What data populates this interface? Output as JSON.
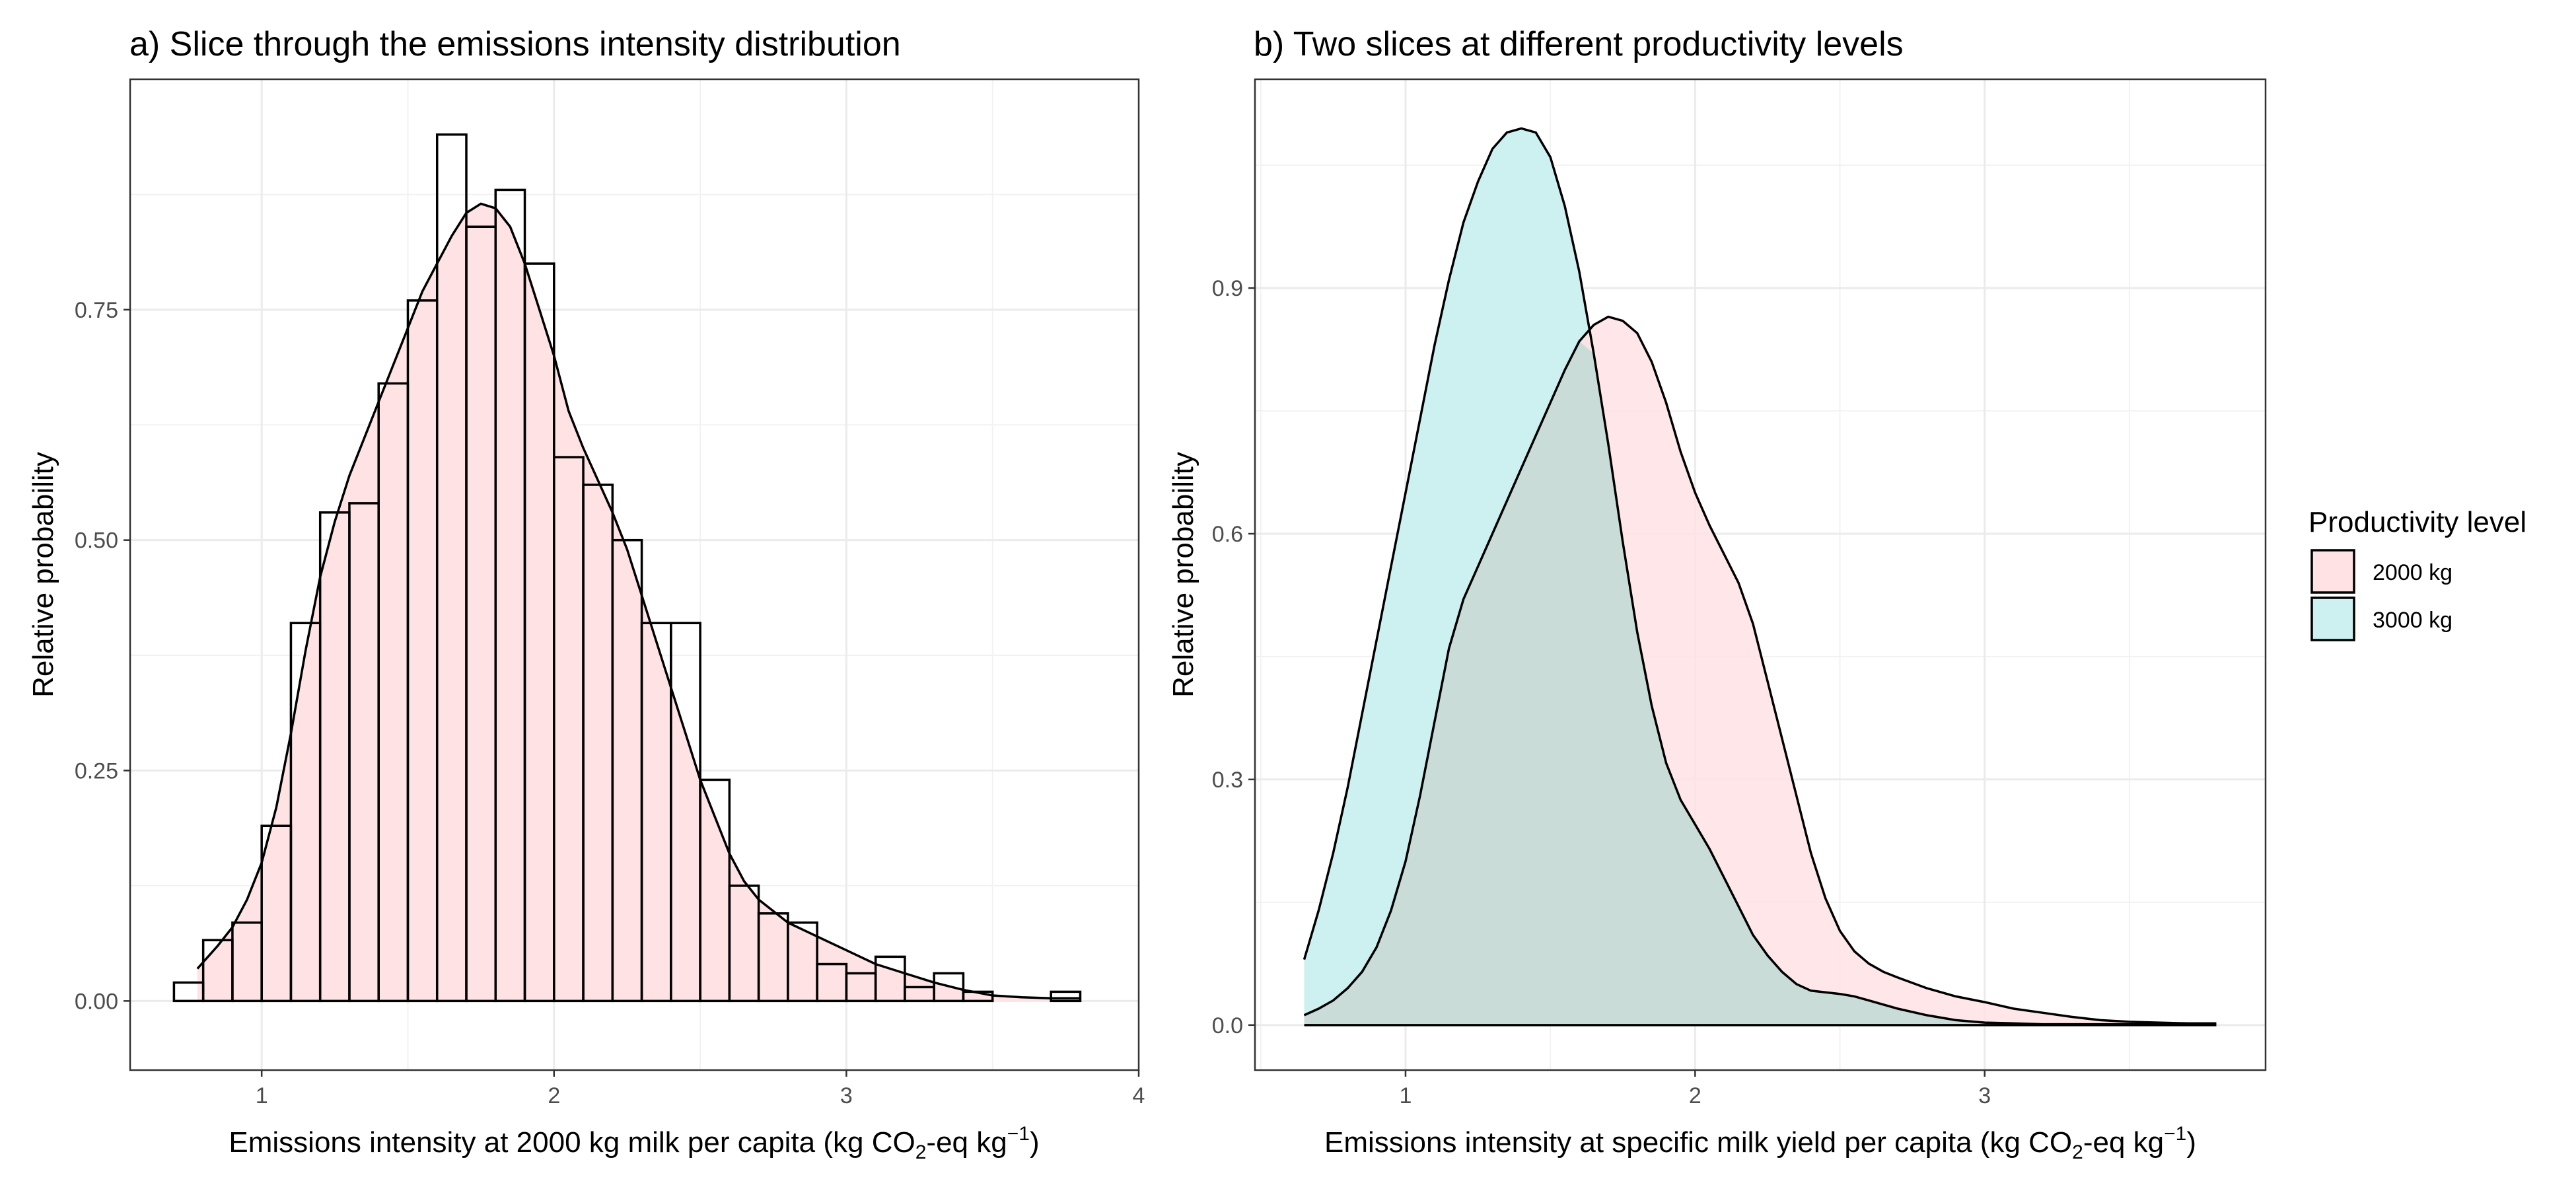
{
  "chart_data": [
    {
      "type": "bar",
      "title": "a) Slice through the emissions intensity distribution",
      "xlabel_main": "Emissions intensity at 2000 kg milk per capita",
      "xlabel_unit": {
        "open": "(kg CO",
        "sub": "2",
        "mid": "-eq kg",
        "sup": "−1",
        "close": ")"
      },
      "ylabel": "Relative probability",
      "xlim": [
        0.55,
        4.0
      ],
      "ylim": [
        -0.075,
        1.0
      ],
      "xticks": [
        1,
        2,
        3,
        4
      ],
      "xtick_labels": [
        "1",
        "2",
        "3",
        "4"
      ],
      "yticks": [
        0,
        0.25,
        0.5,
        0.75
      ],
      "ytick_labels": [
        "0.00",
        "0.25",
        "0.50",
        "0.75"
      ],
      "grid": true,
      "fill_color": "#ffe2e4",
      "bin_width": 0.1,
      "bins": [
        {
          "x0": 0.7,
          "x1": 0.8,
          "value": 0.02
        },
        {
          "x0": 0.8,
          "x1": 0.9,
          "value": 0.066
        },
        {
          "x0": 0.9,
          "x1": 1.0,
          "value": 0.085
        },
        {
          "x0": 1.0,
          "x1": 1.1,
          "value": 0.19
        },
        {
          "x0": 1.1,
          "x1": 1.2,
          "value": 0.41
        },
        {
          "x0": 1.2,
          "x1": 1.3,
          "value": 0.53
        },
        {
          "x0": 1.3,
          "x1": 1.4,
          "value": 0.54
        },
        {
          "x0": 1.4,
          "x1": 1.5,
          "value": 0.67
        },
        {
          "x0": 1.5,
          "x1": 1.6,
          "value": 0.76
        },
        {
          "x0": 1.6,
          "x1": 1.7,
          "value": 0.94
        },
        {
          "x0": 1.7,
          "x1": 1.8,
          "value": 0.84
        },
        {
          "x0": 1.8,
          "x1": 1.9,
          "value": 0.88
        },
        {
          "x0": 1.9,
          "x1": 2.0,
          "value": 0.8
        },
        {
          "x0": 2.0,
          "x1": 2.1,
          "value": 0.59
        },
        {
          "x0": 2.1,
          "x1": 2.2,
          "value": 0.56
        },
        {
          "x0": 2.2,
          "x1": 2.3,
          "value": 0.5
        },
        {
          "x0": 2.3,
          "x1": 2.4,
          "value": 0.41
        },
        {
          "x0": 2.4,
          "x1": 2.5,
          "value": 0.41
        },
        {
          "x0": 2.5,
          "x1": 2.6,
          "value": 0.24
        },
        {
          "x0": 2.6,
          "x1": 2.7,
          "value": 0.125
        },
        {
          "x0": 2.7,
          "x1": 2.8,
          "value": 0.095
        },
        {
          "x0": 2.8,
          "x1": 2.9,
          "value": 0.085
        },
        {
          "x0": 2.9,
          "x1": 3.0,
          "value": 0.04
        },
        {
          "x0": 3.0,
          "x1": 3.1,
          "value": 0.03
        },
        {
          "x0": 3.1,
          "x1": 3.2,
          "value": 0.048
        },
        {
          "x0": 3.2,
          "x1": 3.3,
          "value": 0.015
        },
        {
          "x0": 3.3,
          "x1": 3.4,
          "value": 0.03
        },
        {
          "x0": 3.4,
          "x1": 3.5,
          "value": 0.01
        },
        {
          "x0": 3.7,
          "x1": 3.8,
          "value": 0.01
        }
      ],
      "density": {
        "x": [
          0.78,
          0.85,
          0.9,
          0.95,
          1.0,
          1.05,
          1.1,
          1.15,
          1.2,
          1.25,
          1.3,
          1.35,
          1.4,
          1.45,
          1.5,
          1.55,
          1.6,
          1.65,
          1.7,
          1.75,
          1.8,
          1.85,
          1.9,
          1.95,
          2.0,
          2.05,
          2.1,
          2.15,
          2.2,
          2.25,
          2.3,
          2.35,
          2.4,
          2.45,
          2.5,
          2.55,
          2.6,
          2.65,
          2.7,
          2.8,
          2.9,
          3.0,
          3.1,
          3.2,
          3.3,
          3.4,
          3.5,
          3.6,
          3.7,
          3.8
        ],
        "y": [
          0.035,
          0.06,
          0.08,
          0.11,
          0.15,
          0.21,
          0.29,
          0.38,
          0.46,
          0.52,
          0.57,
          0.61,
          0.65,
          0.69,
          0.73,
          0.77,
          0.8,
          0.83,
          0.855,
          0.865,
          0.86,
          0.84,
          0.8,
          0.75,
          0.7,
          0.64,
          0.6,
          0.565,
          0.53,
          0.49,
          0.44,
          0.39,
          0.34,
          0.29,
          0.24,
          0.2,
          0.16,
          0.13,
          0.11,
          0.085,
          0.07,
          0.055,
          0.04,
          0.03,
          0.02,
          0.012,
          0.006,
          0.004,
          0.003,
          0.003
        ]
      }
    },
    {
      "type": "area",
      "title": "b) Two slices at different productivity levels",
      "xlabel_main": "Emissions intensity at specific milk yield per capita",
      "xlabel_unit": {
        "open": "(kg CO",
        "sub": "2",
        "mid": "-eq kg",
        "sup": "−1",
        "close": ")"
      },
      "ylabel": "Relative probability",
      "xlim": [
        0.48,
        3.97
      ],
      "ylim": [
        -0.055,
        1.155
      ],
      "xticks": [
        1,
        2,
        3
      ],
      "xtick_labels": [
        "1",
        "2",
        "3"
      ],
      "yticks": [
        0,
        0.3,
        0.6,
        0.9
      ],
      "ytick_labels": [
        "0.0",
        "0.3",
        "0.6",
        "0.9"
      ],
      "grid": true,
      "legend": {
        "title": "Productivity level",
        "placement": "right",
        "entries": [
          {
            "label": "2000 kg",
            "color": "#ffe2e4"
          },
          {
            "label": "3000 kg",
            "color": "#cdf0f0"
          }
        ]
      },
      "series": [
        {
          "name": "3000 kg",
          "color": "#cdf0f0",
          "x": [
            0.65,
            0.7,
            0.75,
            0.8,
            0.85,
            0.9,
            0.95,
            1.0,
            1.05,
            1.1,
            1.15,
            1.2,
            1.25,
            1.3,
            1.35,
            1.4,
            1.45,
            1.5,
            1.55,
            1.6,
            1.65,
            1.7,
            1.75,
            1.8,
            1.85,
            1.9,
            1.95,
            2.0,
            2.05,
            2.1,
            2.15,
            2.2,
            2.25,
            2.3,
            2.35,
            2.4,
            2.45,
            2.5,
            2.55,
            2.6,
            2.65,
            2.7,
            2.8,
            2.9,
            3.0,
            3.1,
            3.2,
            3.3,
            3.4,
            3.5,
            3.6,
            3.7,
            3.8
          ],
          "y": [
            0.08,
            0.14,
            0.21,
            0.29,
            0.38,
            0.47,
            0.56,
            0.65,
            0.74,
            0.83,
            0.91,
            0.98,
            1.03,
            1.07,
            1.09,
            1.095,
            1.09,
            1.06,
            1.0,
            0.92,
            0.82,
            0.71,
            0.59,
            0.48,
            0.39,
            0.32,
            0.275,
            0.245,
            0.215,
            0.18,
            0.145,
            0.11,
            0.085,
            0.065,
            0.05,
            0.042,
            0.04,
            0.038,
            0.035,
            0.03,
            0.025,
            0.02,
            0.012,
            0.006,
            0.003,
            0.002,
            0.001,
            0.001,
            0.001,
            0.001,
            0.001,
            0.001,
            0.001
          ]
        },
        {
          "name": "2000 kg",
          "color": "#ffe2e4",
          "x": [
            0.65,
            0.7,
            0.75,
            0.8,
            0.85,
            0.9,
            0.95,
            1.0,
            1.05,
            1.1,
            1.15,
            1.2,
            1.25,
            1.3,
            1.35,
            1.4,
            1.45,
            1.5,
            1.55,
            1.6,
            1.65,
            1.7,
            1.75,
            1.8,
            1.85,
            1.9,
            1.95,
            2.0,
            2.05,
            2.1,
            2.15,
            2.2,
            2.25,
            2.3,
            2.35,
            2.4,
            2.45,
            2.5,
            2.55,
            2.6,
            2.65,
            2.7,
            2.8,
            2.9,
            3.0,
            3.1,
            3.2,
            3.3,
            3.4,
            3.5,
            3.6,
            3.7,
            3.8
          ],
          "y": [
            0.012,
            0.02,
            0.03,
            0.045,
            0.065,
            0.095,
            0.14,
            0.2,
            0.28,
            0.37,
            0.46,
            0.52,
            0.56,
            0.6,
            0.64,
            0.68,
            0.72,
            0.76,
            0.8,
            0.835,
            0.855,
            0.865,
            0.86,
            0.845,
            0.81,
            0.76,
            0.7,
            0.65,
            0.61,
            0.575,
            0.54,
            0.49,
            0.42,
            0.35,
            0.28,
            0.21,
            0.155,
            0.115,
            0.09,
            0.075,
            0.065,
            0.058,
            0.045,
            0.035,
            0.028,
            0.02,
            0.015,
            0.01,
            0.006,
            0.004,
            0.003,
            0.002,
            0.002
          ]
        }
      ]
    }
  ]
}
